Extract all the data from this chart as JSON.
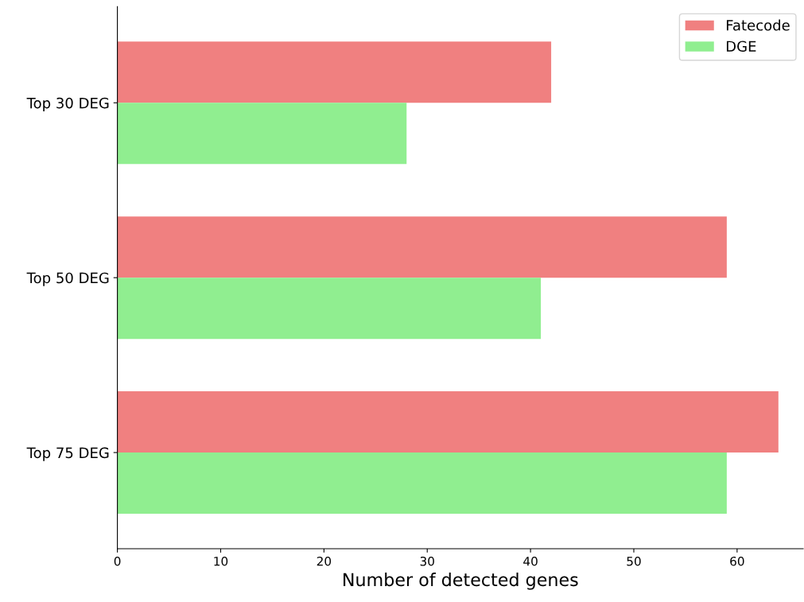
{
  "chart_data": {
    "type": "bar",
    "orientation": "horizontal",
    "xlabel": "Number of detected genes",
    "categories": [
      "Top 30 DEG",
      "Top 50 DEG",
      "Top 75 DEG"
    ],
    "series": [
      {
        "name": "Fatecode",
        "color": "#f08080",
        "values": [
          42,
          59,
          64
        ]
      },
      {
        "name": "DGE",
        "color": "#90ee90",
        "values": [
          28,
          41,
          59
        ]
      }
    ],
    "xlim": [
      0,
      66.4
    ],
    "xticks": [
      0,
      10,
      20,
      30,
      40,
      50,
      60
    ],
    "grid": false,
    "legend": "top right"
  }
}
